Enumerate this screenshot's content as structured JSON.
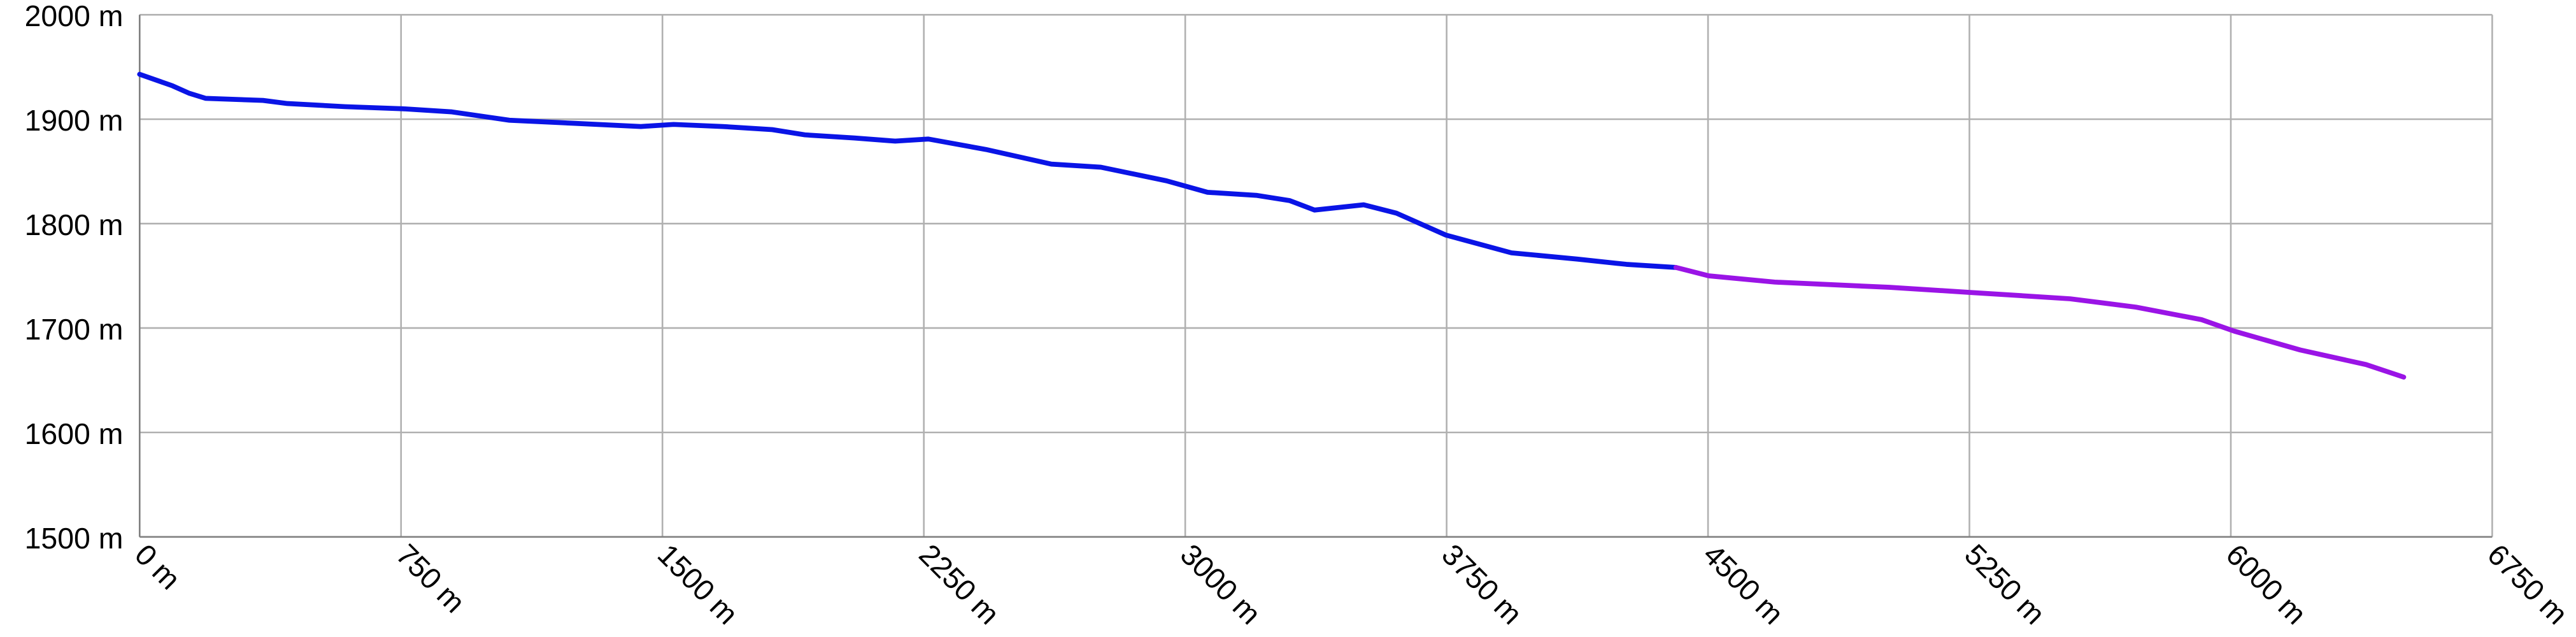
{
  "chart_data": {
    "type": "line",
    "series": [
      {
        "color": "#0a14e6",
        "x": [
          0,
          94,
          141,
          189,
          354,
          424,
          589,
          754,
          896,
          1061,
          1249,
          1438,
          1532,
          1673,
          1815,
          1909,
          2051,
          2168,
          2263,
          2428,
          2616,
          2758,
          2946,
          3064,
          3206,
          3300,
          3371,
          3512,
          3606,
          3748,
          3936,
          4125,
          4266,
          4408
        ],
        "values": [
          1943,
          1932,
          1925,
          1920,
          1918,
          1915,
          1912,
          1910,
          1907,
          1899,
          1896,
          1893,
          1895,
          1893,
          1890,
          1885,
          1882,
          1879,
          1881,
          1871,
          1857,
          1854,
          1841,
          1830,
          1827,
          1822,
          1813,
          1818,
          1810,
          1789,
          1772,
          1766,
          1761,
          1758
        ]
      },
      {
        "color": "#9a14e6",
        "x": [
          4408,
          4502,
          4691,
          5020,
          5256,
          5539,
          5728,
          5916,
          6010,
          6199,
          6388,
          6496
        ],
        "values": [
          1758,
          1750,
          1744,
          1739,
          1734,
          1728,
          1720,
          1708,
          1697,
          1679,
          1665,
          1653
        ]
      }
    ],
    "xlim": [
      0,
      6750
    ],
    "ylim": [
      1500,
      2000
    ],
    "xticks": [
      {
        "value": 0,
        "label": "0 m"
      },
      {
        "value": 750,
        "label": "750 m"
      },
      {
        "value": 1500,
        "label": "1500 m"
      },
      {
        "value": 2250,
        "label": "2250 m"
      },
      {
        "value": 3000,
        "label": "3000 m"
      },
      {
        "value": 3750,
        "label": "3750 m"
      },
      {
        "value": 4500,
        "label": "4500 m"
      },
      {
        "value": 5250,
        "label": "5250 m"
      },
      {
        "value": 6000,
        "label": "6000 m"
      },
      {
        "value": 6750,
        "label": "6750 m"
      }
    ],
    "yticks": [
      {
        "value": 1500,
        "label": "1500 m"
      },
      {
        "value": 1600,
        "label": "1600 m"
      },
      {
        "value": 1700,
        "label": "1700 m"
      },
      {
        "value": 1800,
        "label": "1800 m"
      },
      {
        "value": 1900,
        "label": "1900 m"
      },
      {
        "value": 2000,
        "label": "2000 m"
      }
    ],
    "grid": true
  }
}
